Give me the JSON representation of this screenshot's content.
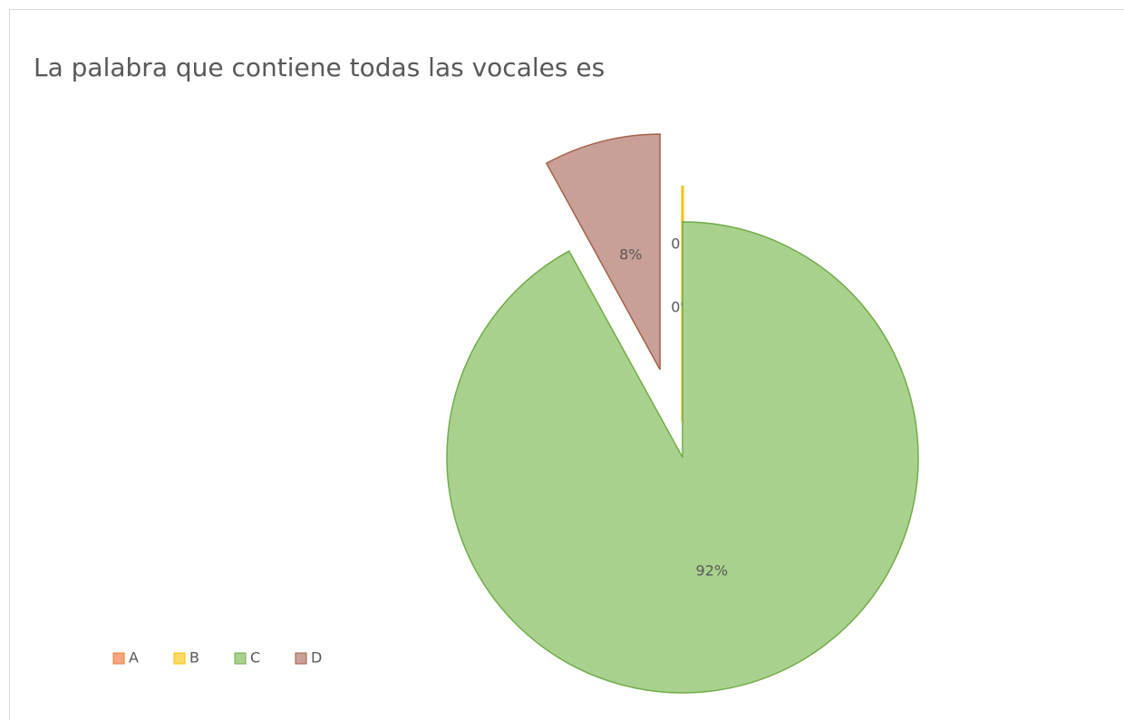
{
  "chart_data": {
    "type": "pie",
    "title": "La palabra que contiene todas las vocales es",
    "categories": [
      "A",
      "B",
      "C",
      "D"
    ],
    "values": [
      0,
      0,
      92,
      8
    ],
    "value_labels": [
      "0%",
      "0%",
      "92%",
      "8%"
    ],
    "colors": [
      "#f4a582",
      "#ffd966",
      "#a9d18e",
      "#c9a097"
    ],
    "edge_colors": [
      "#ed7d31",
      "#ffc000",
      "#70ad47",
      "#a5614a"
    ],
    "legend": "bottom-left"
  }
}
